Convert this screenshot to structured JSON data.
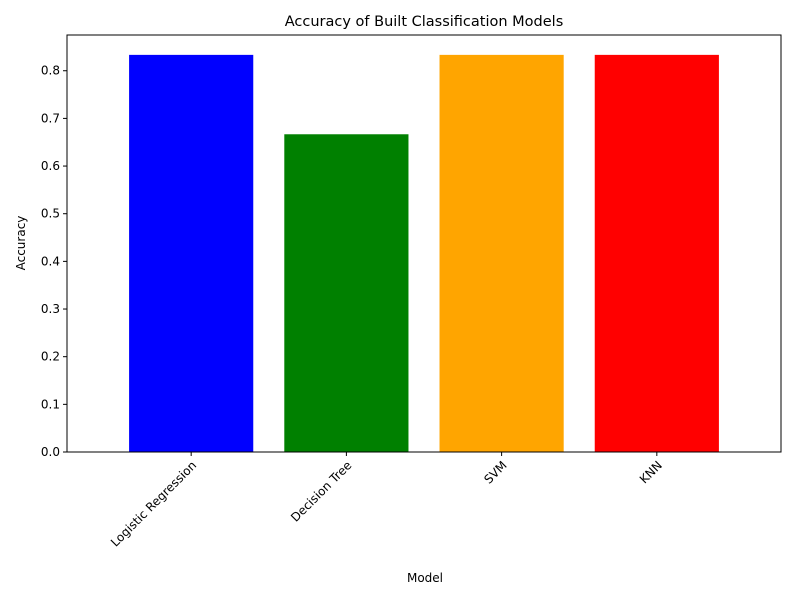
{
  "chart_data": {
    "type": "bar",
    "title": "Accuracy of Built Classification Models",
    "xlabel": "Model",
    "ylabel": "Accuracy",
    "categories": [
      "Logistic Regression",
      "Decision Tree",
      "SVM",
      "KNN"
    ],
    "values": [
      0.8333,
      0.6667,
      0.8333,
      0.8333
    ],
    "colors": [
      "#0000ff",
      "#008000",
      "#ffa500",
      "#ff0000"
    ],
    "ylim": [
      0,
      0.875
    ],
    "yticks": [
      "0.0",
      "0.1",
      "0.2",
      "0.3",
      "0.4",
      "0.5",
      "0.6",
      "0.7",
      "0.8"
    ],
    "grid": false,
    "legend": "none"
  }
}
